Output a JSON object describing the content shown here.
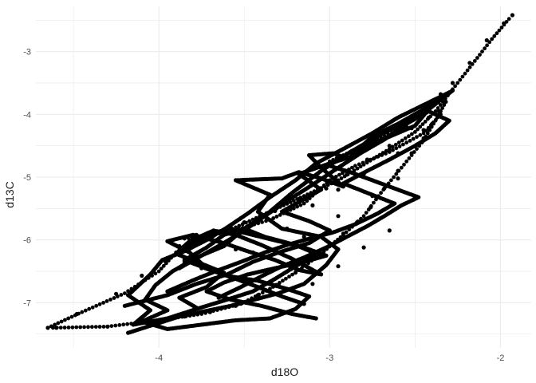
{
  "chart_data": {
    "type": "scatter",
    "title": "",
    "xlabel": "d18O",
    "ylabel": "d13C",
    "xlim": [
      -4.72,
      -1.82
    ],
    "ylim": [
      -7.72,
      -2.28
    ],
    "x_ticks": [
      -4,
      -3,
      -2
    ],
    "y_ticks": [
      -7,
      -6,
      -5,
      -4,
      -3
    ],
    "grid": true,
    "legend": "none",
    "colors": {
      "points": "#000000",
      "background": "#ffffff",
      "grid": "#ebebeb"
    },
    "series": [
      {
        "points": [
          [
            -4.65,
            -7.4
          ],
          [
            -4.48,
            -7.18
          ],
          [
            -4.25,
            -6.86
          ],
          [
            -4.1,
            -6.57
          ],
          [
            -3.96,
            -6.35
          ],
          [
            -3.88,
            -6.1
          ],
          [
            -3.78,
            -5.92
          ],
          [
            -3.64,
            -5.86
          ],
          [
            -3.5,
            -5.72
          ],
          [
            -3.32,
            -5.54
          ],
          [
            -3.18,
            -5.35
          ],
          [
            -3.02,
            -5.18
          ],
          [
            -2.9,
            -4.96
          ],
          [
            -2.78,
            -4.72
          ],
          [
            -2.65,
            -4.5
          ],
          [
            -2.52,
            -4.22
          ],
          [
            -2.42,
            -3.92
          ],
          [
            -2.35,
            -3.68
          ],
          [
            -2.28,
            -3.5
          ],
          [
            -2.18,
            -3.18
          ],
          [
            -2.08,
            -2.82
          ],
          [
            -1.98,
            -2.55
          ],
          [
            -1.93,
            -2.42
          ],
          [
            -4.6,
            -7.4
          ],
          [
            -4.3,
            -7.38
          ],
          [
            -4.05,
            -7.3
          ],
          [
            -3.85,
            -7.22
          ],
          [
            -3.7,
            -7.15
          ],
          [
            -3.55,
            -7.05
          ],
          [
            -3.42,
            -6.88
          ],
          [
            -3.3,
            -6.72
          ],
          [
            -3.2,
            -6.52
          ],
          [
            -3.08,
            -6.28
          ],
          [
            -3.0,
            -6.08
          ],
          [
            -2.92,
            -5.9
          ],
          [
            -2.84,
            -5.72
          ],
          [
            -2.76,
            -5.48
          ],
          [
            -2.68,
            -5.18
          ],
          [
            -2.6,
            -4.9
          ],
          [
            -2.52,
            -4.62
          ],
          [
            -2.45,
            -4.38
          ],
          [
            -2.4,
            -4.15
          ],
          [
            -2.36,
            -3.95
          ],
          [
            -2.32,
            -3.8
          ],
          [
            -3.85,
            -6.35
          ],
          [
            -3.55,
            -6.15
          ],
          [
            -3.25,
            -5.82
          ],
          [
            -3.1,
            -5.45
          ],
          [
            -2.95,
            -5.2
          ],
          [
            -2.8,
            -4.95
          ],
          [
            -2.6,
            -4.62
          ],
          [
            -2.45,
            -4.25
          ],
          [
            -3.75,
            -6.45
          ],
          [
            -3.45,
            -6.2
          ],
          [
            -3.15,
            -5.95
          ],
          [
            -2.95,
            -5.62
          ],
          [
            -2.75,
            -5.3
          ],
          [
            -2.6,
            -5.02
          ],
          [
            -3.1,
            -6.7
          ],
          [
            -2.95,
            -6.42
          ],
          [
            -2.8,
            -6.12
          ],
          [
            -2.65,
            -5.85
          ],
          [
            -3.0,
            -4.82
          ],
          [
            -2.85,
            -4.65
          ],
          [
            -2.72,
            -4.42
          ],
          [
            -2.55,
            -4.2
          ],
          [
            -2.42,
            -4.05
          ]
        ],
        "paths": [
          [
            [
              -4.18,
              -7.48
            ],
            [
              -3.88,
              -7.22
            ],
            [
              -3.58,
              -7.05
            ],
            [
              -3.3,
              -6.85
            ],
            [
              -3.15,
              -6.7
            ],
            [
              -3.02,
              -6.4
            ],
            [
              -2.95,
              -6.15
            ],
            [
              -3.05,
              -5.95
            ],
            [
              -3.28,
              -5.82
            ],
            [
              -3.42,
              -5.55
            ],
            [
              -3.35,
              -5.28
            ],
            [
              -3.55,
              -5.05
            ],
            [
              -3.28,
              -5.02
            ],
            [
              -3.18,
              -4.92
            ],
            [
              -3.05,
              -5.02
            ],
            [
              -2.92,
              -5.15
            ],
            [
              -3.05,
              -4.85
            ],
            [
              -3.12,
              -4.65
            ],
            [
              -2.98,
              -4.62
            ],
            [
              -2.88,
              -4.72
            ],
            [
              -2.82,
              -4.55
            ],
            [
              -2.62,
              -4.32
            ],
            [
              -2.5,
              -4.18
            ],
            [
              -2.42,
              -3.92
            ],
            [
              -2.28,
              -3.62
            ],
            [
              -2.38,
              -3.78
            ],
            [
              -2.55,
              -4.12
            ],
            [
              -2.72,
              -4.35
            ],
            [
              -2.88,
              -4.6
            ],
            [
              -3.05,
              -4.9
            ],
            [
              -3.22,
              -5.25
            ],
            [
              -3.35,
              -5.55
            ],
            [
              -3.5,
              -5.82
            ],
            [
              -3.62,
              -6.1
            ],
            [
              -3.78,
              -6.28
            ],
            [
              -3.92,
              -6.5
            ],
            [
              -4.02,
              -6.72
            ],
            [
              -4.08,
              -6.95
            ],
            [
              -3.95,
              -7.12
            ],
            [
              -4.1,
              -7.3
            ],
            [
              -3.95,
              -7.42
            ],
            [
              -3.75,
              -7.35
            ],
            [
              -3.55,
              -7.28
            ],
            [
              -3.35,
              -7.25
            ],
            [
              -3.2,
              -7.1
            ],
            [
              -3.12,
              -6.9
            ],
            [
              -3.25,
              -6.78
            ],
            [
              -3.42,
              -6.65
            ],
            [
              -3.58,
              -6.58
            ],
            [
              -3.72,
              -6.45
            ],
            [
              -3.82,
              -6.2
            ],
            [
              -3.95,
              -6.02
            ],
            [
              -3.8,
              -5.92
            ],
            [
              -3.62,
              -6.05
            ],
            [
              -3.48,
              -6.18
            ],
            [
              -3.32,
              -6.32
            ],
            [
              -3.18,
              -6.48
            ],
            [
              -3.05,
              -6.55
            ],
            [
              -3.22,
              -6.3
            ],
            [
              -3.4,
              -6.08
            ],
            [
              -3.55,
              -5.92
            ],
            [
              -3.68,
              -5.85
            ],
            [
              -3.82,
              -6.02
            ],
            [
              -3.9,
              -6.22
            ],
            [
              -3.75,
              -6.38
            ],
            [
              -3.62,
              -6.52
            ],
            [
              -3.72,
              -6.75
            ],
            [
              -3.88,
              -6.92
            ],
            [
              -3.78,
              -7.08
            ]
          ],
          [
            [
              -4.2,
              -7.05
            ],
            [
              -3.95,
              -6.88
            ],
            [
              -3.78,
              -6.7
            ],
            [
              -3.6,
              -6.55
            ],
            [
              -3.45,
              -6.35
            ],
            [
              -3.3,
              -6.2
            ],
            [
              -3.12,
              -6.05
            ],
            [
              -3.0,
              -5.85
            ],
            [
              -3.12,
              -5.7
            ],
            [
              -3.28,
              -5.55
            ],
            [
              -3.15,
              -5.35
            ],
            [
              -3.05,
              -5.2
            ],
            [
              -3.18,
              -4.95
            ],
            [
              -3.02,
              -4.8
            ],
            [
              -2.88,
              -4.68
            ],
            [
              -2.75,
              -4.35
            ],
            [
              -2.6,
              -4.15
            ],
            [
              -2.45,
              -3.92
            ],
            [
              -2.3,
              -3.65
            ],
            [
              -2.45,
              -3.85
            ],
            [
              -2.6,
              -4.05
            ],
            [
              -2.75,
              -4.3
            ],
            [
              -2.92,
              -4.55
            ],
            [
              -3.08,
              -4.78
            ],
            [
              -3.2,
              -5.05
            ],
            [
              -3.35,
              -5.32
            ],
            [
              -3.48,
              -5.58
            ],
            [
              -3.6,
              -5.8
            ],
            [
              -3.72,
              -6.0
            ],
            [
              -3.85,
              -6.18
            ],
            [
              -3.98,
              -6.32
            ],
            [
              -4.05,
              -6.55
            ],
            [
              -4.18,
              -6.88
            ],
            [
              -4.05,
              -7.12
            ],
            [
              -4.15,
              -7.35
            ],
            [
              -3.95,
              -7.25
            ],
            [
              -3.78,
              -7.1
            ],
            [
              -3.6,
              -6.95
            ],
            [
              -3.45,
              -6.82
            ],
            [
              -3.32,
              -6.62
            ],
            [
              -3.2,
              -6.42
            ],
            [
              -3.08,
              -6.22
            ],
            [
              -3.2,
              -6.08
            ],
            [
              -3.38,
              -5.95
            ],
            [
              -3.5,
              -5.82
            ],
            [
              -3.62,
              -5.92
            ],
            [
              -3.72,
              -6.12
            ],
            [
              -3.85,
              -6.32
            ],
            [
              -3.7,
              -6.48
            ],
            [
              -3.55,
              -6.62
            ],
            [
              -3.42,
              -6.75
            ],
            [
              -3.28,
              -6.9
            ],
            [
              -3.15,
              -7.02
            ]
          ],
          [
            [
              -3.85,
              -6.15
            ],
            [
              -3.72,
              -5.95
            ],
            [
              -3.6,
              -5.82
            ],
            [
              -3.45,
              -5.92
            ],
            [
              -3.3,
              -6.02
            ],
            [
              -3.15,
              -6.12
            ],
            [
              -3.02,
              -6.25
            ],
            [
              -3.15,
              -6.35
            ],
            [
              -3.32,
              -6.45
            ],
            [
              -3.48,
              -6.55
            ],
            [
              -3.62,
              -6.68
            ],
            [
              -3.72,
              -6.82
            ],
            [
              -3.58,
              -6.95
            ],
            [
              -3.4,
              -7.05
            ],
            [
              -3.22,
              -7.18
            ],
            [
              -3.08,
              -7.25
            ]
          ],
          [
            [
              -3.95,
              -6.82
            ],
            [
              -3.78,
              -6.62
            ],
            [
              -3.65,
              -6.48
            ],
            [
              -3.52,
              -6.35
            ],
            [
              -3.38,
              -6.2
            ],
            [
              -3.25,
              -6.08
            ],
            [
              -3.12,
              -5.98
            ],
            [
              -2.98,
              -5.88
            ],
            [
              -2.85,
              -5.75
            ],
            [
              -2.72,
              -5.58
            ],
            [
              -2.62,
              -5.42
            ],
            [
              -2.78,
              -5.25
            ],
            [
              -2.92,
              -5.1
            ],
            [
              -2.78,
              -4.9
            ],
            [
              -2.65,
              -4.72
            ],
            [
              -2.5,
              -4.5
            ],
            [
              -2.38,
              -4.3
            ],
            [
              -2.3,
              -4.1
            ],
            [
              -2.42,
              -3.95
            ],
            [
              -2.55,
              -4.15
            ],
            [
              -2.68,
              -4.4
            ],
            [
              -2.82,
              -4.62
            ],
            [
              -2.95,
              -4.85
            ],
            [
              -3.1,
              -5.12
            ],
            [
              -3.25,
              -5.38
            ],
            [
              -3.38,
              -5.62
            ],
            [
              -3.5,
              -5.85
            ],
            [
              -3.62,
              -6.05
            ],
            [
              -3.75,
              -6.25
            ],
            [
              -3.88,
              -6.45
            ]
          ],
          [
            [
              -3.65,
              -6.92
            ],
            [
              -3.52,
              -6.75
            ],
            [
              -3.4,
              -6.58
            ],
            [
              -3.28,
              -6.42
            ],
            [
              -3.15,
              -6.28
            ],
            [
              -3.02,
              -6.12
            ],
            [
              -2.9,
              -5.95
            ],
            [
              -2.78,
              -5.78
            ],
            [
              -2.68,
              -5.62
            ],
            [
              -2.58,
              -5.45
            ],
            [
              -2.48,
              -5.32
            ],
            [
              -2.62,
              -5.18
            ],
            [
              -2.75,
              -5.05
            ],
            [
              -2.88,
              -4.92
            ],
            [
              -3.0,
              -4.82
            ]
          ]
        ]
      }
    ]
  }
}
